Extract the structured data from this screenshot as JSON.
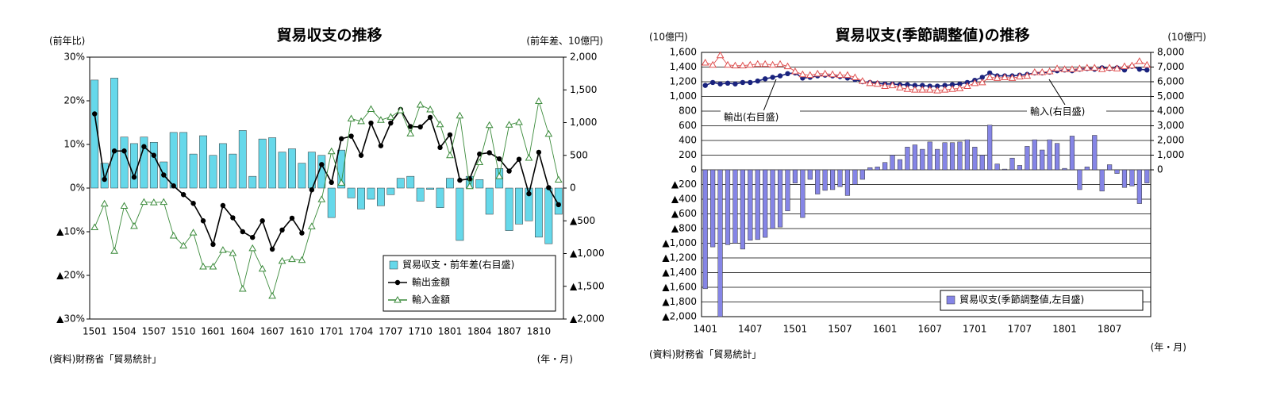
{
  "chart_data": [
    {
      "type": "combo",
      "title": "貿易収支の推移",
      "y_axis_label": "(前年比)",
      "y2_axis_label": "(前年差、10億円)",
      "source": "(資料)財務省「貿易統計」",
      "x_axis_label": "(年・月)",
      "categories": [
        "1501",
        null,
        null,
        "1504",
        null,
        null,
        "1507",
        null,
        null,
        "1510",
        null,
        null,
        "1601",
        null,
        null,
        "1604",
        null,
        null,
        "1607",
        null,
        null,
        "1610",
        null,
        null,
        "1701",
        null,
        null,
        "1704",
        null,
        null,
        "1707",
        null,
        null,
        "1710",
        null,
        null,
        "1801",
        null,
        null,
        "1804",
        null,
        null,
        "1807",
        null,
        null,
        "1810",
        null,
        null
      ],
      "series": [
        {
          "name": "貿易収支・前年差(右目盛)",
          "kind": "bar",
          "axis": "y2",
          "color": "#66d8ea",
          "values": [
            1650,
            380,
            1680,
            780,
            680,
            780,
            700,
            400,
            850,
            850,
            520,
            800,
            500,
            680,
            520,
            880,
            180,
            750,
            770,
            550,
            600,
            380,
            550,
            500,
            -450,
            580,
            -150,
            -320,
            -170,
            -270,
            -100,
            150,
            180,
            -200,
            -20,
            -300,
            150,
            -800,
            180,
            130,
            -400,
            300,
            -650,
            -550,
            -500,
            -750,
            -850,
            -400
          ]
        },
        {
          "name": "輸出金額",
          "kind": "line",
          "marker": "circle",
          "color": "#000000",
          "values": [
            17,
            2,
            8.5,
            8.5,
            2.5,
            9.5,
            7.5,
            3,
            0.5,
            -1.5,
            -3.5,
            -7.5,
            -12.9,
            -4,
            -6.8,
            -10,
            -11.3,
            -7.5,
            -14,
            -9.6,
            -6.9,
            -10.3,
            -0.4,
            5.4,
            1.3,
            11.3,
            11.9,
            7.5,
            14.9,
            9.7,
            14.9,
            18,
            14.1,
            14,
            16.2,
            9.3,
            12.2,
            1.8,
            2.1,
            7.8,
            8.1,
            6.7,
            3.9,
            6.6,
            -1.3,
            8.2,
            0.1,
            -3.8
          ]
        },
        {
          "name": "輸入金額",
          "kind": "line",
          "marker": "triangle",
          "color": "#3a8a3a",
          "values": [
            -9,
            -3.6,
            -14.4,
            -4.1,
            -8.7,
            -3.2,
            -3.3,
            -3.2,
            -10.9,
            -13.2,
            -10.2,
            -18,
            -18,
            -14.2,
            -14.9,
            -23.1,
            -13.8,
            -18.5,
            -24.7,
            -16.7,
            -16.3,
            -16.5,
            -8.8,
            -2.6,
            8.4,
            1.2,
            15.9,
            15.3,
            18.1,
            15.6,
            16.3,
            17.8,
            12.5,
            19.1,
            18,
            14.6,
            7.5,
            16.6,
            0.4,
            5.9,
            14.4,
            2.7,
            14.5,
            15.1,
            6.9,
            19.9,
            12.4,
            1.9
          ]
        }
      ],
      "ylim": [
        -30,
        30
      ],
      "yticks": [
        {
          "value": 30,
          "label": "30%"
        },
        {
          "value": 20,
          "label": "20%"
        },
        {
          "value": 10,
          "label": "10%"
        },
        {
          "value": 0,
          "label": "0%"
        },
        {
          "value": -10,
          "label": "▲10%"
        },
        {
          "value": -20,
          "label": "▲20%"
        },
        {
          "value": -30,
          "label": "▲30%"
        }
      ],
      "y2lim": [
        -2000,
        2000
      ],
      "y2ticks": [
        {
          "value": 2000,
          "label": "2,000"
        },
        {
          "value": 1500,
          "label": "1,500"
        },
        {
          "value": 1000,
          "label": "1,000"
        },
        500,
        0,
        {
          "value": -500,
          "label": "▲500"
        },
        {
          "value": -1000,
          "label": "▲1,000"
        },
        {
          "value": -1500,
          "label": "▲1,500"
        },
        {
          "value": -2000,
          "label": "▲2,000"
        }
      ],
      "grid": false,
      "legend": "lower right"
    },
    {
      "type": "combo",
      "title": "貿易収支(季節調整値)の推移",
      "y_axis_label": "(10億円)",
      "y2_axis_label": "(10億円)",
      "source": "(資料)財務省「貿易統計」",
      "x_axis_label": "(年・月)",
      "categories": [
        "1401",
        null,
        null,
        null,
        null,
        null,
        "1407",
        null,
        null,
        null,
        null,
        null,
        "1501",
        null,
        null,
        null,
        null,
        null,
        "1507",
        null,
        null,
        null,
        null,
        null,
        "1601",
        null,
        null,
        null,
        null,
        null,
        "1607",
        null,
        null,
        null,
        null,
        null,
        "1701",
        null,
        null,
        null,
        null,
        null,
        "1707",
        null,
        null,
        null,
        null,
        null,
        "1801",
        null,
        null,
        null,
        null,
        null,
        "1807",
        null,
        null,
        null,
        null,
        null
      ],
      "series": [
        {
          "name": "貿易収支(季節調整値,左目盛)",
          "kind": "bar",
          "axis": "y",
          "color": "#8585e6",
          "values": [
            -1620,
            -1050,
            -2000,
            -1020,
            -1000,
            -1080,
            -960,
            -950,
            -920,
            -800,
            -780,
            -560,
            -180,
            -650,
            -130,
            -330,
            -280,
            -270,
            -230,
            -350,
            -200,
            -130,
            30,
            40,
            100,
            200,
            140,
            310,
            340,
            280,
            380,
            280,
            370,
            370,
            380,
            410,
            310,
            200,
            610,
            80,
            10,
            160,
            60,
            320,
            410,
            270,
            410,
            360,
            20,
            460,
            -270,
            40,
            470,
            -290,
            70,
            -50,
            -240,
            -220,
            -460,
            -180
          ]
        },
        {
          "name": "輸出(右目盛)",
          "kind": "line",
          "marker": "circle",
          "axis": "y2",
          "color": "#1a237e",
          "values": [
            5750,
            5950,
            5850,
            5900,
            5850,
            5950,
            5950,
            6050,
            6200,
            6300,
            6400,
            6550,
            6600,
            6250,
            6300,
            6400,
            6450,
            6400,
            6350,
            6250,
            6150,
            6000,
            5950,
            5900,
            5850,
            5850,
            5800,
            5800,
            5750,
            5750,
            5700,
            5700,
            5750,
            5800,
            5850,
            5950,
            6100,
            6300,
            6600,
            6400,
            6400,
            6400,
            6450,
            6500,
            6600,
            6600,
            6650,
            6750,
            6800,
            6750,
            6850,
            6900,
            6850,
            6950,
            6900,
            6950,
            6800,
            7050,
            6850,
            6800
          ]
        },
        {
          "name": "輸入(右目盛)",
          "kind": "line",
          "marker": "triangle",
          "axis": "y2",
          "color": "#e05050",
          "values": [
            7300,
            7150,
            7800,
            7150,
            7100,
            7100,
            7150,
            7200,
            7200,
            7150,
            7200,
            7050,
            6700,
            6500,
            6450,
            6550,
            6550,
            6500,
            6450,
            6450,
            6300,
            6050,
            5900,
            5850,
            5700,
            5750,
            5600,
            5500,
            5450,
            5450,
            5450,
            5400,
            5450,
            5500,
            5550,
            5700,
            5900,
            5950,
            6300,
            6250,
            6300,
            6250,
            6350,
            6400,
            6650,
            6650,
            6700,
            6900,
            6850,
            6850,
            6900,
            6950,
            6950,
            6850,
            6950,
            6900,
            7050,
            7100,
            7400,
            7150
          ]
        }
      ],
      "ylim": [
        -2000,
        1600
      ],
      "yticks": [
        {
          "value": 1600,
          "label": "1,600"
        },
        {
          "value": 1400,
          "label": "1,400"
        },
        {
          "value": 1200,
          "label": "1,200"
        },
        {
          "value": 1000,
          "label": "1,000"
        },
        800,
        600,
        400,
        200,
        0,
        {
          "value": -200,
          "label": "▲200"
        },
        {
          "value": -400,
          "label": "▲400"
        },
        {
          "value": -600,
          "label": "▲600"
        },
        {
          "value": -800,
          "label": "▲800"
        },
        {
          "value": -1000,
          "label": "▲1,000"
        },
        {
          "value": -1200,
          "label": "▲1,200"
        },
        {
          "value": -1400,
          "label": "▲1,400"
        },
        {
          "value": -1600,
          "label": "▲1,600"
        },
        {
          "value": -1800,
          "label": "▲1,800"
        },
        {
          "value": -2000,
          "label": "▲2,000"
        }
      ],
      "y2lim": [
        -10000,
        8000
      ],
      "y2ticks": [
        {
          "value": 8000,
          "label": "8,000"
        },
        {
          "value": 7000,
          "label": "7,000"
        },
        {
          "value": 6000,
          "label": "6,000"
        },
        {
          "value": 5000,
          "label": "5,000"
        },
        {
          "value": 4000,
          "label": "4,000"
        },
        {
          "value": 3000,
          "label": "3,000"
        },
        {
          "value": 2000,
          "label": "2,000"
        },
        {
          "value": 1000,
          "label": "1,000"
        },
        0
      ],
      "grid": true,
      "legend": "lower right",
      "legend_series": [
        0
      ],
      "line_labels": true
    }
  ]
}
